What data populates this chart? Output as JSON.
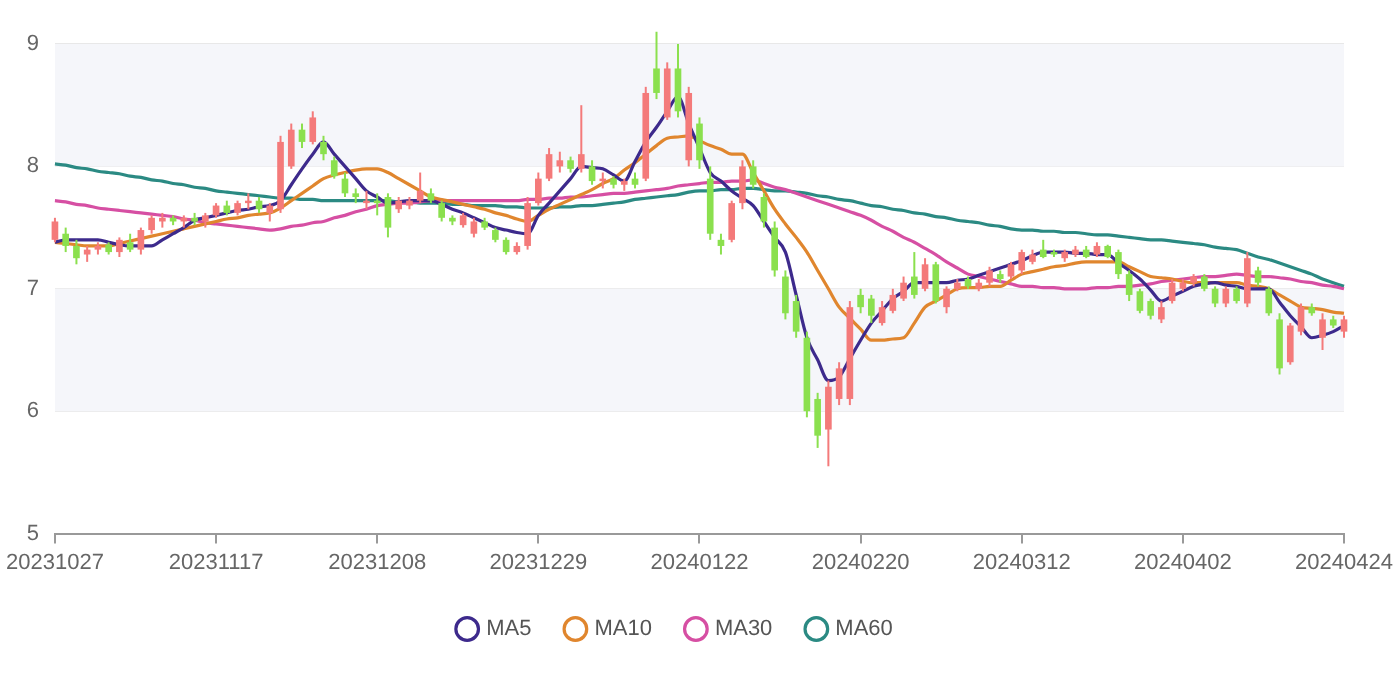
{
  "chart_data": {
    "type": "candlestick",
    "categories": [
      "20231027",
      null,
      null,
      null,
      null,
      null,
      null,
      null,
      null,
      null,
      null,
      null,
      null,
      null,
      null,
      "20231117",
      null,
      null,
      null,
      null,
      null,
      null,
      null,
      null,
      null,
      null,
      null,
      null,
      null,
      null,
      "20231208",
      null,
      null,
      null,
      null,
      null,
      null,
      null,
      null,
      null,
      null,
      null,
      null,
      null,
      null,
      "20231229",
      null,
      null,
      null,
      null,
      null,
      null,
      null,
      null,
      null,
      null,
      null,
      null,
      null,
      null,
      "20240122",
      null,
      null,
      null,
      null,
      null,
      null,
      null,
      null,
      null,
      null,
      null,
      null,
      null,
      null,
      "20240220",
      null,
      null,
      null,
      null,
      null,
      null,
      null,
      null,
      null,
      null,
      null,
      null,
      null,
      null,
      "20240312",
      null,
      null,
      null,
      null,
      null,
      null,
      null,
      null,
      null,
      null,
      null,
      null,
      null,
      null,
      "20240402",
      null,
      null,
      null,
      null,
      null,
      null,
      null,
      null,
      null,
      null,
      null,
      null,
      null,
      null,
      "20240424"
    ],
    "ohlc": [
      [
        7.4,
        7.58,
        7.38,
        7.55
      ],
      [
        7.45,
        7.5,
        7.3,
        7.35
      ],
      [
        7.35,
        7.4,
        7.2,
        7.25
      ],
      [
        7.28,
        7.35,
        7.22,
        7.32
      ],
      [
        7.32,
        7.38,
        7.28,
        7.35
      ],
      [
        7.36,
        7.38,
        7.28,
        7.3
      ],
      [
        7.3,
        7.42,
        7.26,
        7.4
      ],
      [
        7.38,
        7.45,
        7.3,
        7.32
      ],
      [
        7.32,
        7.5,
        7.28,
        7.48
      ],
      [
        7.48,
        7.6,
        7.45,
        7.58
      ],
      [
        7.55,
        7.62,
        7.5,
        7.58
      ],
      [
        7.58,
        7.6,
        7.52,
        7.55
      ],
      [
        7.55,
        7.6,
        7.5,
        7.58
      ],
      [
        7.58,
        7.62,
        7.52,
        7.55
      ],
      [
        7.55,
        7.62,
        7.5,
        7.6
      ],
      [
        7.6,
        7.7,
        7.58,
        7.68
      ],
      [
        7.68,
        7.72,
        7.6,
        7.62
      ],
      [
        7.62,
        7.72,
        7.6,
        7.7
      ],
      [
        7.7,
        7.78,
        7.65,
        7.72
      ],
      [
        7.72,
        7.75,
        7.62,
        7.65
      ],
      [
        7.62,
        7.7,
        7.55,
        7.68
      ],
      [
        7.65,
        8.25,
        7.62,
        8.2
      ],
      [
        8.0,
        8.35,
        7.98,
        8.3
      ],
      [
        8.3,
        8.35,
        8.15,
        8.2
      ],
      [
        8.2,
        8.45,
        8.18,
        8.4
      ],
      [
        8.2,
        8.25,
        8.05,
        8.1
      ],
      [
        8.05,
        8.08,
        7.9,
        7.92
      ],
      [
        7.9,
        7.95,
        7.75,
        7.78
      ],
      [
        7.78,
        7.82,
        7.7,
        7.75
      ],
      [
        7.7,
        7.8,
        7.65,
        7.72
      ],
      [
        7.72,
        7.78,
        7.6,
        7.7
      ],
      [
        7.75,
        7.78,
        7.42,
        7.5
      ],
      [
        7.65,
        7.75,
        7.62,
        7.72
      ],
      [
        7.68,
        7.75,
        7.65,
        7.72
      ],
      [
        7.72,
        7.95,
        7.7,
        7.8
      ],
      [
        7.78,
        7.82,
        7.7,
        7.72
      ],
      [
        7.7,
        7.72,
        7.55,
        7.58
      ],
      [
        7.58,
        7.6,
        7.52,
        7.55
      ],
      [
        7.52,
        7.62,
        7.5,
        7.6
      ],
      [
        7.45,
        7.58,
        7.42,
        7.55
      ],
      [
        7.55,
        7.58,
        7.48,
        7.5
      ],
      [
        7.48,
        7.5,
        7.38,
        7.4
      ],
      [
        7.4,
        7.42,
        7.28,
        7.3
      ],
      [
        7.3,
        7.38,
        7.28,
        7.35
      ],
      [
        7.35,
        7.75,
        7.32,
        7.7
      ],
      [
        7.7,
        7.95,
        7.68,
        7.9
      ],
      [
        7.9,
        8.15,
        7.88,
        8.1
      ],
      [
        8.0,
        8.12,
        7.95,
        8.05
      ],
      [
        8.05,
        8.08,
        7.95,
        7.98
      ],
      [
        7.98,
        8.5,
        7.95,
        8.1
      ],
      [
        8.0,
        8.05,
        7.85,
        7.88
      ],
      [
        7.88,
        7.95,
        7.82,
        7.9
      ],
      [
        7.9,
        7.92,
        7.82,
        7.85
      ],
      [
        7.85,
        7.9,
        7.8,
        7.88
      ],
      [
        7.9,
        7.95,
        7.82,
        7.85
      ],
      [
        7.9,
        8.65,
        7.88,
        8.6
      ],
      [
        8.8,
        9.1,
        8.55,
        8.6
      ],
      [
        8.4,
        8.85,
        8.38,
        8.8
      ],
      [
        8.8,
        9.0,
        8.4,
        8.45
      ],
      [
        8.05,
        8.65,
        8.0,
        8.6
      ],
      [
        8.35,
        8.4,
        7.98,
        8.05
      ],
      [
        7.9,
        8.0,
        7.4,
        7.45
      ],
      [
        7.4,
        7.45,
        7.28,
        7.35
      ],
      [
        7.4,
        7.72,
        7.38,
        7.7
      ],
      [
        7.7,
        8.05,
        7.65,
        8.0
      ],
      [
        8.0,
        8.05,
        7.82,
        7.85
      ],
      [
        7.75,
        7.78,
        7.5,
        7.55
      ],
      [
        7.5,
        7.55,
        7.1,
        7.15
      ],
      [
        7.1,
        7.15,
        6.75,
        6.8
      ],
      [
        6.9,
        6.95,
        6.6,
        6.65
      ],
      [
        6.6,
        6.65,
        5.95,
        6.0
      ],
      [
        6.1,
        6.15,
        5.7,
        5.8
      ],
      [
        5.85,
        6.25,
        5.55,
        6.2
      ],
      [
        6.1,
        6.4,
        6.05,
        6.35
      ],
      [
        6.1,
        6.9,
        6.05,
        6.85
      ],
      [
        6.95,
        7.0,
        6.8,
        6.85
      ],
      [
        6.92,
        6.95,
        6.72,
        6.78
      ],
      [
        6.72,
        6.9,
        6.7,
        6.85
      ],
      [
        6.82,
        7.0,
        6.8,
        6.95
      ],
      [
        6.92,
        7.1,
        6.9,
        7.05
      ],
      [
        7.1,
        7.3,
        6.92,
        6.95
      ],
      [
        7.0,
        7.25,
        6.98,
        7.2
      ],
      [
        7.2,
        7.22,
        6.88,
        6.9
      ],
      [
        6.85,
        7.02,
        6.8,
        7.0
      ],
      [
        7.0,
        7.08,
        6.98,
        7.05
      ],
      [
        7.08,
        7.1,
        7.0,
        7.02
      ],
      [
        7.0,
        7.08,
        6.98,
        7.05
      ],
      [
        7.05,
        7.18,
        7.02,
        7.15
      ],
      [
        7.12,
        7.15,
        7.05,
        7.08
      ],
      [
        7.1,
        7.22,
        7.08,
        7.2
      ],
      [
        7.15,
        7.32,
        7.12,
        7.3
      ],
      [
        7.22,
        7.32,
        7.2,
        7.28
      ],
      [
        7.32,
        7.4,
        7.25,
        7.26
      ],
      [
        7.3,
        7.32,
        7.26,
        7.28
      ],
      [
        7.25,
        7.32,
        7.22,
        7.3
      ],
      [
        7.28,
        7.35,
        7.26,
        7.32
      ],
      [
        7.32,
        7.35,
        7.25,
        7.26
      ],
      [
        7.28,
        7.38,
        7.26,
        7.35
      ],
      [
        7.35,
        7.36,
        7.25,
        7.26
      ],
      [
        7.3,
        7.32,
        7.08,
        7.12
      ],
      [
        7.12,
        7.15,
        6.9,
        6.95
      ],
      [
        6.98,
        7.0,
        6.8,
        6.82
      ],
      [
        6.9,
        6.92,
        6.75,
        6.78
      ],
      [
        6.75,
        6.9,
        6.72,
        6.85
      ],
      [
        6.9,
        7.08,
        6.88,
        7.05
      ],
      [
        7.0,
        7.08,
        6.98,
        7.05
      ],
      [
        7.05,
        7.12,
        7.02,
        7.1
      ],
      [
        7.1,
        7.12,
        6.98,
        7.0
      ],
      [
        7.0,
        7.02,
        6.85,
        6.88
      ],
      [
        6.88,
        7.02,
        6.85,
        7.0
      ],
      [
        7.0,
        7.02,
        6.88,
        6.9
      ],
      [
        6.88,
        7.3,
        6.85,
        7.25
      ],
      [
        7.15,
        7.18,
        7.02,
        7.05
      ],
      [
        7.0,
        7.02,
        6.78,
        6.8
      ],
      [
        6.75,
        6.8,
        6.3,
        6.35
      ],
      [
        6.4,
        6.72,
        6.38,
        6.7
      ],
      [
        6.65,
        6.88,
        6.62,
        6.85
      ],
      [
        6.85,
        6.88,
        6.78,
        6.8
      ],
      [
        6.6,
        6.8,
        6.5,
        6.75
      ],
      [
        6.75,
        6.78,
        6.68,
        6.7
      ],
      [
        6.65,
        6.78,
        6.6,
        6.75
      ]
    ],
    "colors": [
      "#f47a7a",
      "#8be04e",
      "#8be04e",
      "#f47a7a",
      "#f47a7a",
      "#8be04e",
      "#f47a7a",
      "#8be04e",
      "#f47a7a",
      "#f47a7a",
      "#f47a7a",
      "#8be04e",
      "#f47a7a",
      "#8be04e",
      "#f47a7a",
      "#f47a7a",
      "#8be04e",
      "#f47a7a",
      "#f47a7a",
      "#8be04e",
      "#f47a7a",
      "#f47a7a",
      "#f47a7a",
      "#8be04e",
      "#f47a7a",
      "#8be04e",
      "#8be04e",
      "#8be04e",
      "#8be04e",
      "#f47a7a",
      "#8be04e",
      "#8be04e",
      "#f47a7a",
      "#f47a7a",
      "#f47a7a",
      "#8be04e",
      "#8be04e",
      "#8be04e",
      "#f47a7a",
      "#f47a7a",
      "#8be04e",
      "#8be04e",
      "#8be04e",
      "#f47a7a",
      "#f47a7a",
      "#f47a7a",
      "#f47a7a",
      "#f47a7a",
      "#8be04e",
      "#f47a7a",
      "#8be04e",
      "#f47a7a",
      "#8be04e",
      "#f47a7a",
      "#8be04e",
      "#f47a7a",
      "#8be04e",
      "#f47a7a",
      "#8be04e",
      "#f47a7a",
      "#8be04e",
      "#8be04e",
      "#8be04e",
      "#f47a7a",
      "#f47a7a",
      "#8be04e",
      "#8be04e",
      "#8be04e",
      "#8be04e",
      "#8be04e",
      "#8be04e",
      "#8be04e",
      "#f47a7a",
      "#f47a7a",
      "#f47a7a",
      "#8be04e",
      "#8be04e",
      "#f47a7a",
      "#f47a7a",
      "#f47a7a",
      "#8be04e",
      "#f47a7a",
      "#8be04e",
      "#f47a7a",
      "#f47a7a",
      "#8be04e",
      "#f47a7a",
      "#f47a7a",
      "#8be04e",
      "#f47a7a",
      "#f47a7a",
      "#f47a7a",
      "#8be04e",
      "#8be04e",
      "#f47a7a",
      "#f47a7a",
      "#8be04e",
      "#f47a7a",
      "#8be04e",
      "#8be04e",
      "#8be04e",
      "#8be04e",
      "#8be04e",
      "#f47a7a",
      "#f47a7a",
      "#f47a7a",
      "#f47a7a",
      "#8be04e",
      "#8be04e",
      "#f47a7a",
      "#8be04e",
      "#f47a7a",
      "#8be04e",
      "#8be04e",
      "#8be04e",
      "#f47a7a",
      "#f47a7a",
      "#8be04e",
      "#f47a7a",
      "#8be04e",
      "#f47a7a"
    ],
    "series": [
      {
        "name": "MA5",
        "type": "line",
        "color": "#3d2a8c",
        "values": [
          7.38,
          7.4,
          7.4,
          7.4,
          7.4,
          7.38,
          7.36,
          7.35,
          7.35,
          7.35,
          7.4,
          7.45,
          7.5,
          7.56,
          7.58,
          7.6,
          7.62,
          7.64,
          7.65,
          7.67,
          7.68,
          7.72,
          7.85,
          7.98,
          8.1,
          8.2,
          8.1,
          8.0,
          7.9,
          7.8,
          7.75,
          7.7,
          7.71,
          7.72,
          7.72,
          7.72,
          7.69,
          7.65,
          7.62,
          7.58,
          7.54,
          7.5,
          7.48,
          7.46,
          7.45,
          7.6,
          7.7,
          7.8,
          7.9,
          8.0,
          7.99,
          7.98,
          7.93,
          7.88,
          8.04,
          8.2,
          8.32,
          8.45,
          8.57,
          8.35,
          8.15,
          7.95,
          7.88,
          7.8,
          7.74,
          7.68,
          7.55,
          7.42,
          7.3,
          6.95,
          6.6,
          6.42,
          6.25,
          6.28,
          6.43,
          6.58,
          6.72,
          6.82,
          6.92,
          6.98,
          7.05,
          7.05,
          7.05,
          7.05,
          7.07,
          7.08,
          7.11,
          7.14,
          7.17,
          7.2,
          7.23,
          7.27,
          7.3,
          7.3,
          7.3,
          7.29,
          7.29,
          7.28,
          7.28,
          7.21,
          7.15,
          7.08,
          6.99,
          6.9,
          6.94,
          6.98,
          7.02,
          7.04,
          7.05,
          7.03,
          7.02,
          7.0,
          7.0,
          7.0,
          6.89,
          6.78,
          6.69,
          6.6,
          6.62,
          6.65,
          6.7
        ]
      },
      {
        "name": "MA10",
        "type": "line",
        "color": "#e0862e",
        "values": [
          7.38,
          7.37,
          7.36,
          7.35,
          7.35,
          7.35,
          7.37,
          7.39,
          7.41,
          7.43,
          7.45,
          7.47,
          7.49,
          7.51,
          7.53,
          7.55,
          7.57,
          7.58,
          7.6,
          7.61,
          7.62,
          7.66,
          7.72,
          7.78,
          7.84,
          7.9,
          7.93,
          7.95,
          7.97,
          7.98,
          7.98,
          7.95,
          7.9,
          7.85,
          7.8,
          7.75,
          7.73,
          7.71,
          7.69,
          7.67,
          7.65,
          7.62,
          7.6,
          7.57,
          7.55,
          7.6,
          7.65,
          7.69,
          7.73,
          7.77,
          7.81,
          7.86,
          7.9,
          7.97,
          8.03,
          8.1,
          8.17,
          8.23,
          8.24,
          8.25,
          8.21,
          8.17,
          8.14,
          8.1,
          8.1,
          7.95,
          7.8,
          7.65,
          7.53,
          7.42,
          7.3,
          7.15,
          7.0,
          6.85,
          6.76,
          6.67,
          6.58,
          6.58,
          6.59,
          6.6,
          6.72,
          6.85,
          6.9,
          6.95,
          7.0,
          7.01,
          7.01,
          7.02,
          7.02,
          7.07,
          7.12,
          7.14,
          7.16,
          7.18,
          7.19,
          7.21,
          7.22,
          7.22,
          7.22,
          7.22,
          7.18,
          7.14,
          7.1,
          7.09,
          7.08,
          7.06,
          7.05,
          7.05,
          7.05,
          7.05,
          7.05,
          7.03,
          7.02,
          7.0,
          6.95,
          6.9,
          6.85,
          6.84,
          6.83,
          6.81,
          6.8
        ]
      },
      {
        "name": "MA30",
        "type": "line",
        "color": "#d64fa3",
        "values": [
          7.72,
          7.71,
          7.69,
          7.68,
          7.66,
          7.65,
          7.64,
          7.63,
          7.62,
          7.61,
          7.6,
          7.59,
          7.57,
          7.56,
          7.54,
          7.53,
          7.52,
          7.51,
          7.5,
          7.49,
          7.48,
          7.49,
          7.51,
          7.52,
          7.54,
          7.55,
          7.58,
          7.6,
          7.63,
          7.65,
          7.68,
          7.69,
          7.7,
          7.7,
          7.71,
          7.72,
          7.72,
          7.72,
          7.72,
          7.72,
          7.72,
          7.72,
          7.72,
          7.72,
          7.73,
          7.73,
          7.74,
          7.74,
          7.75,
          7.75,
          7.76,
          7.77,
          7.78,
          7.78,
          7.79,
          7.8,
          7.81,
          7.82,
          7.84,
          7.85,
          7.86,
          7.87,
          7.87,
          7.88,
          7.88,
          7.89,
          7.86,
          7.83,
          7.81,
          7.78,
          7.75,
          7.72,
          7.69,
          7.66,
          7.63,
          7.6,
          7.56,
          7.51,
          7.47,
          7.42,
          7.38,
          7.33,
          7.28,
          7.22,
          7.17,
          7.12,
          7.1,
          7.08,
          7.06,
          7.04,
          7.02,
          7.02,
          7.01,
          7.01,
          7.0,
          7.0,
          7.0,
          7.01,
          7.01,
          7.02,
          7.02,
          7.03,
          7.04,
          7.06,
          7.07,
          7.08,
          7.09,
          7.1,
          7.1,
          7.11,
          7.12,
          7.11,
          7.1,
          7.1,
          7.09,
          7.08,
          7.06,
          7.05,
          7.03,
          7.02,
          7.0
        ]
      },
      {
        "name": "MA60",
        "type": "line",
        "color": "#2b8a83",
        "values": [
          8.02,
          8.01,
          7.99,
          7.98,
          7.96,
          7.95,
          7.94,
          7.92,
          7.91,
          7.89,
          7.88,
          7.86,
          7.85,
          7.83,
          7.82,
          7.8,
          7.79,
          7.78,
          7.77,
          7.76,
          7.75,
          7.74,
          7.74,
          7.73,
          7.73,
          7.72,
          7.72,
          7.72,
          7.72,
          7.72,
          7.72,
          7.72,
          7.71,
          7.71,
          7.7,
          7.7,
          7.7,
          7.69,
          7.69,
          7.68,
          7.68,
          7.68,
          7.67,
          7.67,
          7.66,
          7.66,
          7.66,
          7.67,
          7.67,
          7.68,
          7.68,
          7.69,
          7.7,
          7.71,
          7.73,
          7.74,
          7.75,
          7.76,
          7.77,
          7.79,
          7.8,
          7.8,
          7.81,
          7.81,
          7.82,
          7.82,
          7.81,
          7.8,
          7.8,
          7.79,
          7.78,
          7.76,
          7.75,
          7.73,
          7.72,
          7.7,
          7.68,
          7.67,
          7.65,
          7.64,
          7.62,
          7.61,
          7.59,
          7.58,
          7.56,
          7.55,
          7.54,
          7.52,
          7.51,
          7.49,
          7.48,
          7.48,
          7.47,
          7.47,
          7.46,
          7.46,
          7.45,
          7.44,
          7.44,
          7.43,
          7.42,
          7.41,
          7.4,
          7.4,
          7.39,
          7.38,
          7.37,
          7.36,
          7.34,
          7.33,
          7.32,
          7.29,
          7.26,
          7.24,
          7.21,
          7.18,
          7.15,
          7.12,
          7.08,
          7.05,
          7.02
        ]
      }
    ],
    "ylim": [
      5,
      9
    ],
    "yticks": [
      5,
      6,
      7,
      8,
      9
    ],
    "grid": "y",
    "legend": "bottom"
  }
}
